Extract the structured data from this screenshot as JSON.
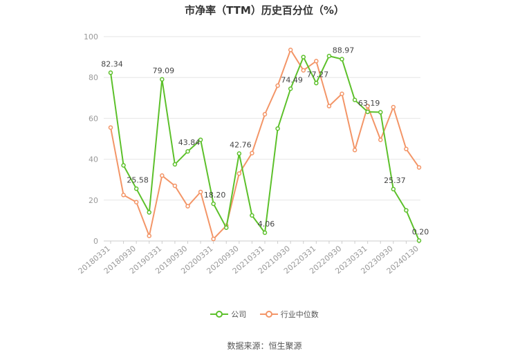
{
  "title": "市净率（TTM）历史百分位（%）",
  "source": "数据来源：恒生聚源",
  "colors": {
    "company": "#5cc02a",
    "industry": "#f39567",
    "grid": "#e6e6e6",
    "axis": "#999999"
  },
  "legend": {
    "company_label": "公司",
    "industry_label": "行业中位数"
  },
  "chart_data": {
    "type": "line",
    "title": "市净率（TTM）历史百分位（%）",
    "ylim": [
      0,
      100
    ],
    "yticks": [
      0,
      20,
      40,
      60,
      80,
      100
    ],
    "grid": true,
    "legend_position": "bottom",
    "x_tick_labels": [
      "20180331",
      "20180930",
      "20190331",
      "20190930",
      "20200331",
      "20200930",
      "20210331",
      "20210930",
      "20220331",
      "20220930",
      "20230331",
      "20230930",
      "20240130"
    ],
    "x": [
      "20180331",
      "20180630",
      "20180930",
      "20181231",
      "20190331",
      "20190630",
      "20190930",
      "20191231",
      "20200331",
      "20200630",
      "20200930",
      "20201231",
      "20210331",
      "20210630",
      "20210930",
      "20211231",
      "20220331",
      "20220630",
      "20220930",
      "20221231",
      "20230331",
      "20230630",
      "20230930",
      "20231231",
      "20240130"
    ],
    "series": [
      {
        "name": "公司",
        "values": [
          82.34,
          37.0,
          25.58,
          14.0,
          79.09,
          37.5,
          43.84,
          49.5,
          18.2,
          6.5,
          42.76,
          12.5,
          4.06,
          55.0,
          74.49,
          90.0,
          77.27,
          90.5,
          88.97,
          69.0,
          63.19,
          63.0,
          25.37,
          15.0,
          0.2
        ],
        "labels": {
          "0": "82.34",
          "2": "25.58",
          "4": "79.09",
          "6": "43.84",
          "8": "18.20",
          "10": "42.76",
          "12": "4.06",
          "14": "74.49",
          "16": "77.27",
          "18": "88.97",
          "20": "63.19",
          "22": "25.37",
          "24": "0.20"
        }
      },
      {
        "name": "行业中位数",
        "values": [
          55.5,
          22.5,
          19.0,
          2.5,
          32.0,
          27.0,
          17.0,
          24.0,
          1.0,
          7.5,
          33.0,
          43.0,
          62.0,
          76.0,
          93.5,
          83.5,
          88.0,
          66.0,
          72.0,
          44.5,
          66.0,
          49.5,
          65.5,
          45.0,
          36.0
        ]
      }
    ]
  }
}
